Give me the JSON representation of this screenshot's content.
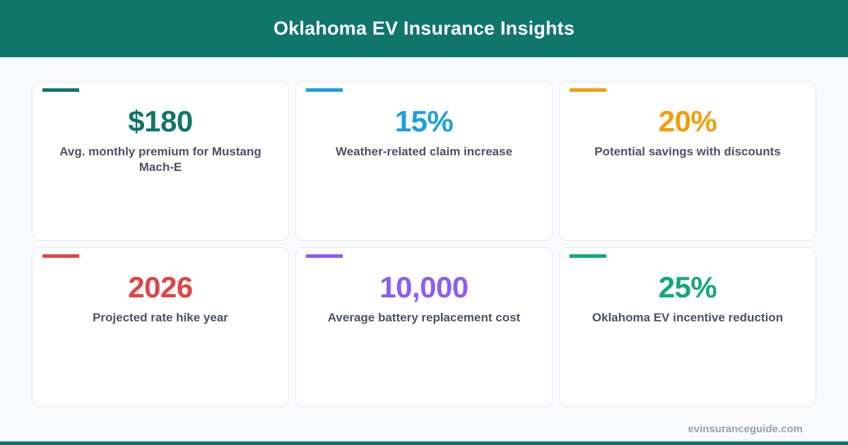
{
  "header": {
    "title": "Oklahoma EV Insurance Insights"
  },
  "cards": [
    {
      "value": "$180",
      "label": "Avg. monthly premium for Mustang Mach-E",
      "color": "#10766c"
    },
    {
      "value": "15%",
      "label": "Weather-related claim increase",
      "color": "#1aa0de"
    },
    {
      "value": "20%",
      "label": "Potential savings with discounts",
      "color": "#f09e0c"
    },
    {
      "value": "2026",
      "label": "Projected rate hike year",
      "color": "#e04444"
    },
    {
      "value": "10,000",
      "label": "Average battery replacement cost",
      "color": "#8b5cf6"
    },
    {
      "value": "25%",
      "label": "Oklahoma EV incentive reduction",
      "color": "#14a876"
    }
  ],
  "footer": {
    "site": "evinsuranceguide.com"
  }
}
